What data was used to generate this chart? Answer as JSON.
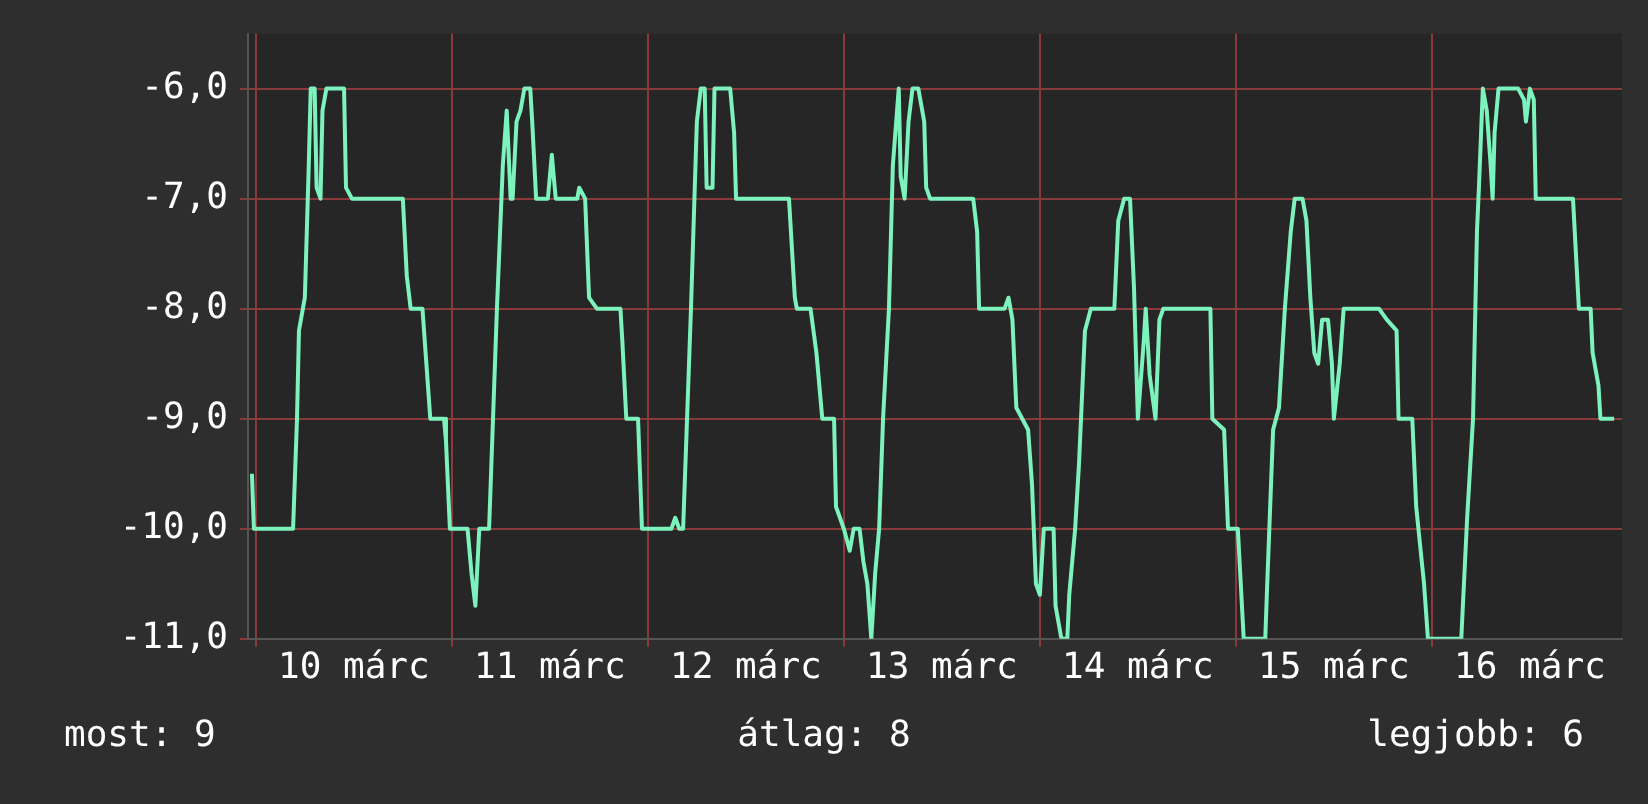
{
  "chart_data": {
    "type": "line",
    "x": [
      9.98,
      9.99,
      10.19,
      10.21,
      10.22,
      10.25,
      10.27,
      10.28,
      10.3,
      10.31,
      10.33,
      10.34,
      10.36,
      10.45,
      10.46,
      10.49,
      10.75,
      10.77,
      10.79,
      10.85,
      10.87,
      10.89,
      10.96,
      10.97,
      10.99,
      11.08,
      11.1,
      11.12,
      11.14,
      11.19,
      11.21,
      11.23,
      11.26,
      11.28,
      11.3,
      11.31,
      11.33,
      11.35,
      11.37,
      11.4,
      11.41,
      11.43,
      11.49,
      11.51,
      11.53,
      11.64,
      11.65,
      11.68,
      11.7,
      11.74,
      11.86,
      11.87,
      11.89,
      11.95,
      11.97,
      12.12,
      12.14,
      12.16,
      12.18,
      12.2,
      12.22,
      12.25,
      12.27,
      12.29,
      12.3,
      12.33,
      12.34,
      12.42,
      12.44,
      12.45,
      12.72,
      12.75,
      12.76,
      12.83,
      12.86,
      12.89,
      12.95,
      12.96,
      13.0,
      13.03,
      13.05,
      13.08,
      13.1,
      13.12,
      13.14,
      13.16,
      13.18,
      13.2,
      13.23,
      13.25,
      13.28,
      13.29,
      13.31,
      13.33,
      13.35,
      13.38,
      13.41,
      13.42,
      13.44,
      13.66,
      13.68,
      13.69,
      13.82,
      13.84,
      13.86,
      13.88,
      13.91,
      13.94,
      13.96,
      13.98,
      14.0,
      14.02,
      14.07,
      14.08,
      14.11,
      14.14,
      14.15,
      14.18,
      14.2,
      14.23,
      14.26,
      14.38,
      14.4,
      14.43,
      14.46,
      14.48,
      14.5,
      14.53,
      14.54,
      14.56,
      14.59,
      14.61,
      14.63,
      14.87,
      14.88,
      14.94,
      14.96,
      15.01,
      15.04,
      15.15,
      15.16,
      15.19,
      15.22,
      15.25,
      15.28,
      15.3,
      15.34,
      15.36,
      15.38,
      15.4,
      15.42,
      15.44,
      15.47,
      15.49,
      15.5,
      15.53,
      15.55,
      15.72,
      15.73,
      15.77,
      15.82,
      15.83,
      15.9,
      15.92,
      15.96,
      15.98,
      16.15,
      16.18,
      16.21,
      16.23,
      16.24,
      16.26,
      16.28,
      16.3,
      16.31,
      16.32,
      16.34,
      16.44,
      16.47,
      16.48,
      16.5,
      16.52,
      16.53,
      16.55,
      16.72,
      16.75,
      16.81,
      16.82,
      16.85,
      16.86,
      16.93
    ],
    "series": [
      {
        "color": "#7cf2bd",
        "values": [
          -9.5,
          -10,
          -10,
          -9,
          -8.2,
          -7.9,
          -6.7,
          -6,
          -6,
          -6.9,
          -7,
          -6.2,
          -6,
          -6,
          -6.9,
          -7,
          -7,
          -7.7,
          -8,
          -8,
          -8.5,
          -9,
          -9,
          -9.2,
          -10,
          -10,
          -10.4,
          -10.7,
          -10,
          -10,
          -9,
          -8,
          -6.7,
          -6.2,
          -7,
          -7,
          -6.3,
          -6.2,
          -6,
          -6,
          -6.3,
          -7,
          -7,
          -6.6,
          -7,
          -7,
          -6.9,
          -7,
          -7.9,
          -8,
          -8,
          -8.3,
          -9,
          -9,
          -10,
          -10,
          -9.9,
          -10,
          -10,
          -9,
          -8,
          -6.3,
          -6,
          -6,
          -6.9,
          -6.9,
          -6,
          -6,
          -6.4,
          -7,
          -7,
          -7.9,
          -8,
          -8,
          -8.4,
          -9,
          -9,
          -9.8,
          -10,
          -10.2,
          -10,
          -10,
          -10.3,
          -10.5,
          -11,
          -10.4,
          -10,
          -9,
          -8,
          -6.7,
          -6,
          -6.8,
          -7,
          -6.3,
          -6,
          -6,
          -6.3,
          -6.9,
          -7,
          -7,
          -7.3,
          -8,
          -8,
          -7.9,
          -8.1,
          -8.9,
          -9,
          -9.1,
          -9.6,
          -10.5,
          -10.6,
          -10,
          -10,
          -10.7,
          -11,
          -11,
          -10.6,
          -10,
          -9.4,
          -8.2,
          -8,
          -8,
          -7.2,
          -7,
          -7,
          -7.8,
          -9,
          -8.3,
          -8,
          -8.6,
          -9,
          -8.1,
          -8,
          -8,
          -9,
          -9.1,
          -10,
          -10,
          -11,
          -11,
          -10.5,
          -9.1,
          -8.9,
          -8,
          -7.3,
          -7,
          -7,
          -7.2,
          -7.9,
          -8.4,
          -8.5,
          -8.1,
          -8.1,
          -8.5,
          -9,
          -8.5,
          -8,
          -8,
          -8,
          -8.1,
          -8.2,
          -9,
          -9,
          -9.8,
          -10.5,
          -11,
          -11,
          -9.9,
          -9,
          -7.3,
          -6.9,
          -6,
          -6.2,
          -6.7,
          -7,
          -6.4,
          -6,
          -6,
          -6.1,
          -6.3,
          -6,
          -6.1,
          -7,
          -7,
          -7,
          -8,
          -8,
          -8.4,
          -8.7,
          -9,
          -9
        ]
      }
    ],
    "xlim": [
      9.96,
      16.97
    ],
    "xticks": [
      {
        "value": 10,
        "label": null
      },
      {
        "value": 10.5,
        "label": "10 márc"
      },
      {
        "value": 11,
        "label": null
      },
      {
        "value": 11.5,
        "label": "11 márc"
      },
      {
        "value": 12,
        "label": null
      },
      {
        "value": 12.5,
        "label": "12 márc"
      },
      {
        "value": 13,
        "label": null
      },
      {
        "value": 13.5,
        "label": "13 márc"
      },
      {
        "value": 14,
        "label": null
      },
      {
        "value": 14.5,
        "label": "14 márc"
      },
      {
        "value": 15,
        "label": null
      },
      {
        "value": 15.5,
        "label": "15 márc"
      },
      {
        "value": 16,
        "label": null
      },
      {
        "value": 16.5,
        "label": "16 márc"
      }
    ],
    "ylim": [
      -11,
      -5.5
    ],
    "yticks": [
      {
        "value": -11,
        "label": "-11,0"
      },
      {
        "value": -10,
        "label": "-10,0"
      },
      {
        "value": -9,
        "label": "-9,0"
      },
      {
        "value": -8,
        "label": "-8,0"
      },
      {
        "value": -7,
        "label": "-7,0"
      },
      {
        "value": -6,
        "label": "-6,0"
      }
    ],
    "grid": true,
    "marker": "none",
    "line_style": "solid",
    "annotations": [
      "most: 9",
      "átlag: 8",
      "legjobb: 6"
    ]
  }
}
